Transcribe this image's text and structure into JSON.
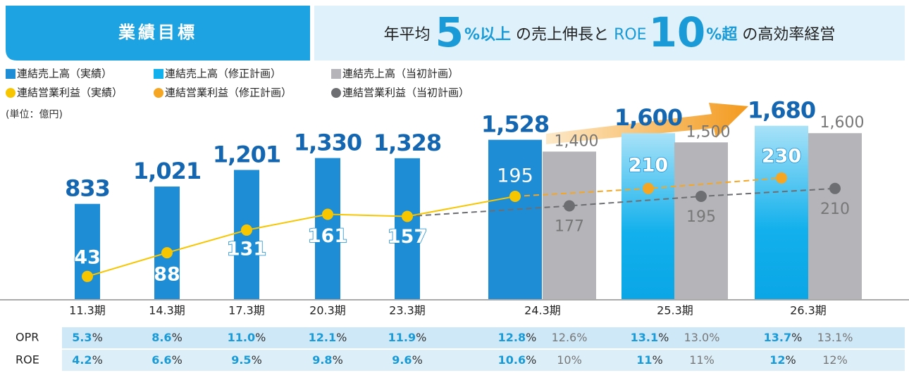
{
  "header": {
    "title": "業績目標",
    "tagline": [
      "年平均",
      "5",
      "%以上",
      "の売上伸長と",
      "ROE",
      "10",
      "%超",
      "の高効率経営"
    ]
  },
  "chart_data": {
    "type": "bar",
    "unit_note": "(単位：億円)",
    "categories": [
      "11.3期",
      "14.3期",
      "17.3期",
      "20.3期",
      "23.3期",
      "24.3期",
      "25.3期",
      "26.3期"
    ],
    "ylim": [
      -200,
      1800
    ],
    "y2lim": [
      0,
      350
    ],
    "series": [
      {
        "name": "連結売上高（実績）",
        "color": "#1f8dd6",
        "kind": "bar",
        "slot": "primary",
        "values": [
          833,
          1021,
          1201,
          1330,
          1328,
          1528,
          null,
          null
        ],
        "value_labels": [
          "833",
          "1,021",
          "1,201",
          "1,330",
          "1,328",
          "1,528",
          null,
          null
        ]
      },
      {
        "name": "連結売上高（修正計画）",
        "color": "#12b0ec",
        "kind": "bar",
        "slot": "primary",
        "values": [
          null,
          null,
          null,
          null,
          null,
          null,
          1600,
          1680
        ],
        "value_labels": [
          null,
          null,
          null,
          null,
          null,
          null,
          "1,600",
          "1,680"
        ]
      },
      {
        "name": "連結売上高（当初計画）",
        "color": "#b5b5b9",
        "kind": "bar",
        "slot": "initial",
        "values": [
          null,
          null,
          null,
          null,
          null,
          1400,
          1500,
          1600
        ],
        "value_labels": [
          null,
          null,
          null,
          null,
          null,
          "1,400",
          "1,500",
          "1,600"
        ]
      },
      {
        "name": "連結営業利益（実績）",
        "color": "#f7c600",
        "kind": "line",
        "axis": "y2",
        "slot": "primary",
        "values": [
          43,
          88,
          131,
          161,
          157,
          195,
          null,
          null
        ]
      },
      {
        "name": "連結営業利益（修正計画）",
        "color": "#f5a623",
        "kind": "line",
        "axis": "y2",
        "slot": "primary",
        "dashed": true,
        "values": [
          null,
          null,
          null,
          null,
          null,
          null,
          210,
          230
        ]
      },
      {
        "name": "連結営業利益（当初計画）",
        "color": "#6d6e71",
        "kind": "line",
        "axis": "y2",
        "slot": "initial",
        "dashed": true,
        "values": [
          null,
          null,
          null,
          null,
          null,
          177,
          195,
          210
        ]
      }
    ]
  },
  "table": {
    "unit": "%",
    "rows": [
      {
        "label": "OPR",
        "primary": [
          "5.3",
          "8.6",
          "11.0",
          "12.1",
          "11.9",
          "12.8",
          "13.1",
          "13.7"
        ],
        "initial": [
          null,
          null,
          null,
          null,
          null,
          "12.6",
          "13.0",
          "13.1"
        ]
      },
      {
        "label": "ROE",
        "primary": [
          "4.2",
          "6.6",
          "9.5",
          "9.8",
          "9.6",
          "10.6",
          "11",
          "12"
        ],
        "initial": [
          null,
          null,
          null,
          null,
          null,
          "10",
          "11",
          "12"
        ]
      }
    ]
  }
}
